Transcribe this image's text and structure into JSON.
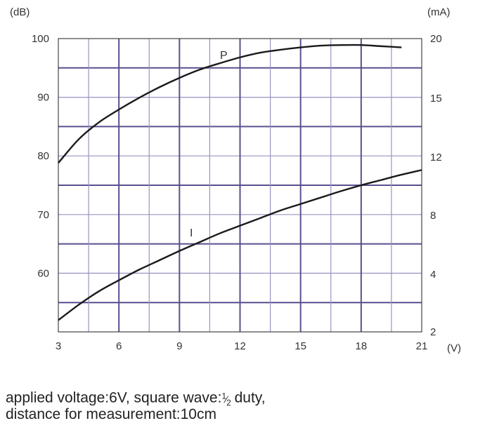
{
  "chart_data": {
    "type": "line",
    "y_left_unit": "(dB)",
    "y_right_unit": "(mA)",
    "x_unit": "(V)",
    "x_ticks": [
      "3",
      "6",
      "9",
      "12",
      "15",
      "18",
      "21"
    ],
    "x_range": [
      3,
      21
    ],
    "y_left_ticks": [
      "100",
      "90",
      "80",
      "70",
      "60"
    ],
    "y_left_range": [
      50,
      100
    ],
    "y_right_ticks": [
      "20",
      "15",
      "12",
      "8",
      "4",
      "2"
    ],
    "grid": true,
    "series": [
      {
        "name": "P",
        "axis": "left",
        "x": [
          3,
          4,
          5,
          6,
          7,
          8,
          9,
          10,
          11,
          12,
          13,
          14,
          15,
          16,
          17,
          18,
          19,
          20
        ],
        "y": [
          78.8,
          82.8,
          85.7,
          87.9,
          89.9,
          91.7,
          93.3,
          94.7,
          95.8,
          96.8,
          97.6,
          98.1,
          98.5,
          98.8,
          98.9,
          98.9,
          98.7,
          98.5
        ]
      },
      {
        "name": "I",
        "axis": "left",
        "x": [
          3,
          4,
          5,
          6,
          7,
          8,
          9,
          10,
          11,
          12,
          13,
          14,
          15,
          16,
          17,
          18,
          19,
          20,
          21
        ],
        "y": [
          52.0,
          54.6,
          56.9,
          58.8,
          60.6,
          62.2,
          63.8,
          65.3,
          66.8,
          68.1,
          69.4,
          70.7,
          71.8,
          72.9,
          74.0,
          75.0,
          75.9,
          76.8,
          77.6
        ]
      }
    ]
  },
  "caption": {
    "line1_a": "applied voltage:6V, square wave:",
    "frac_num": "1",
    "frac_den": "2",
    "line1_b": " duty,",
    "line2": "distance for measurement:10cm"
  }
}
